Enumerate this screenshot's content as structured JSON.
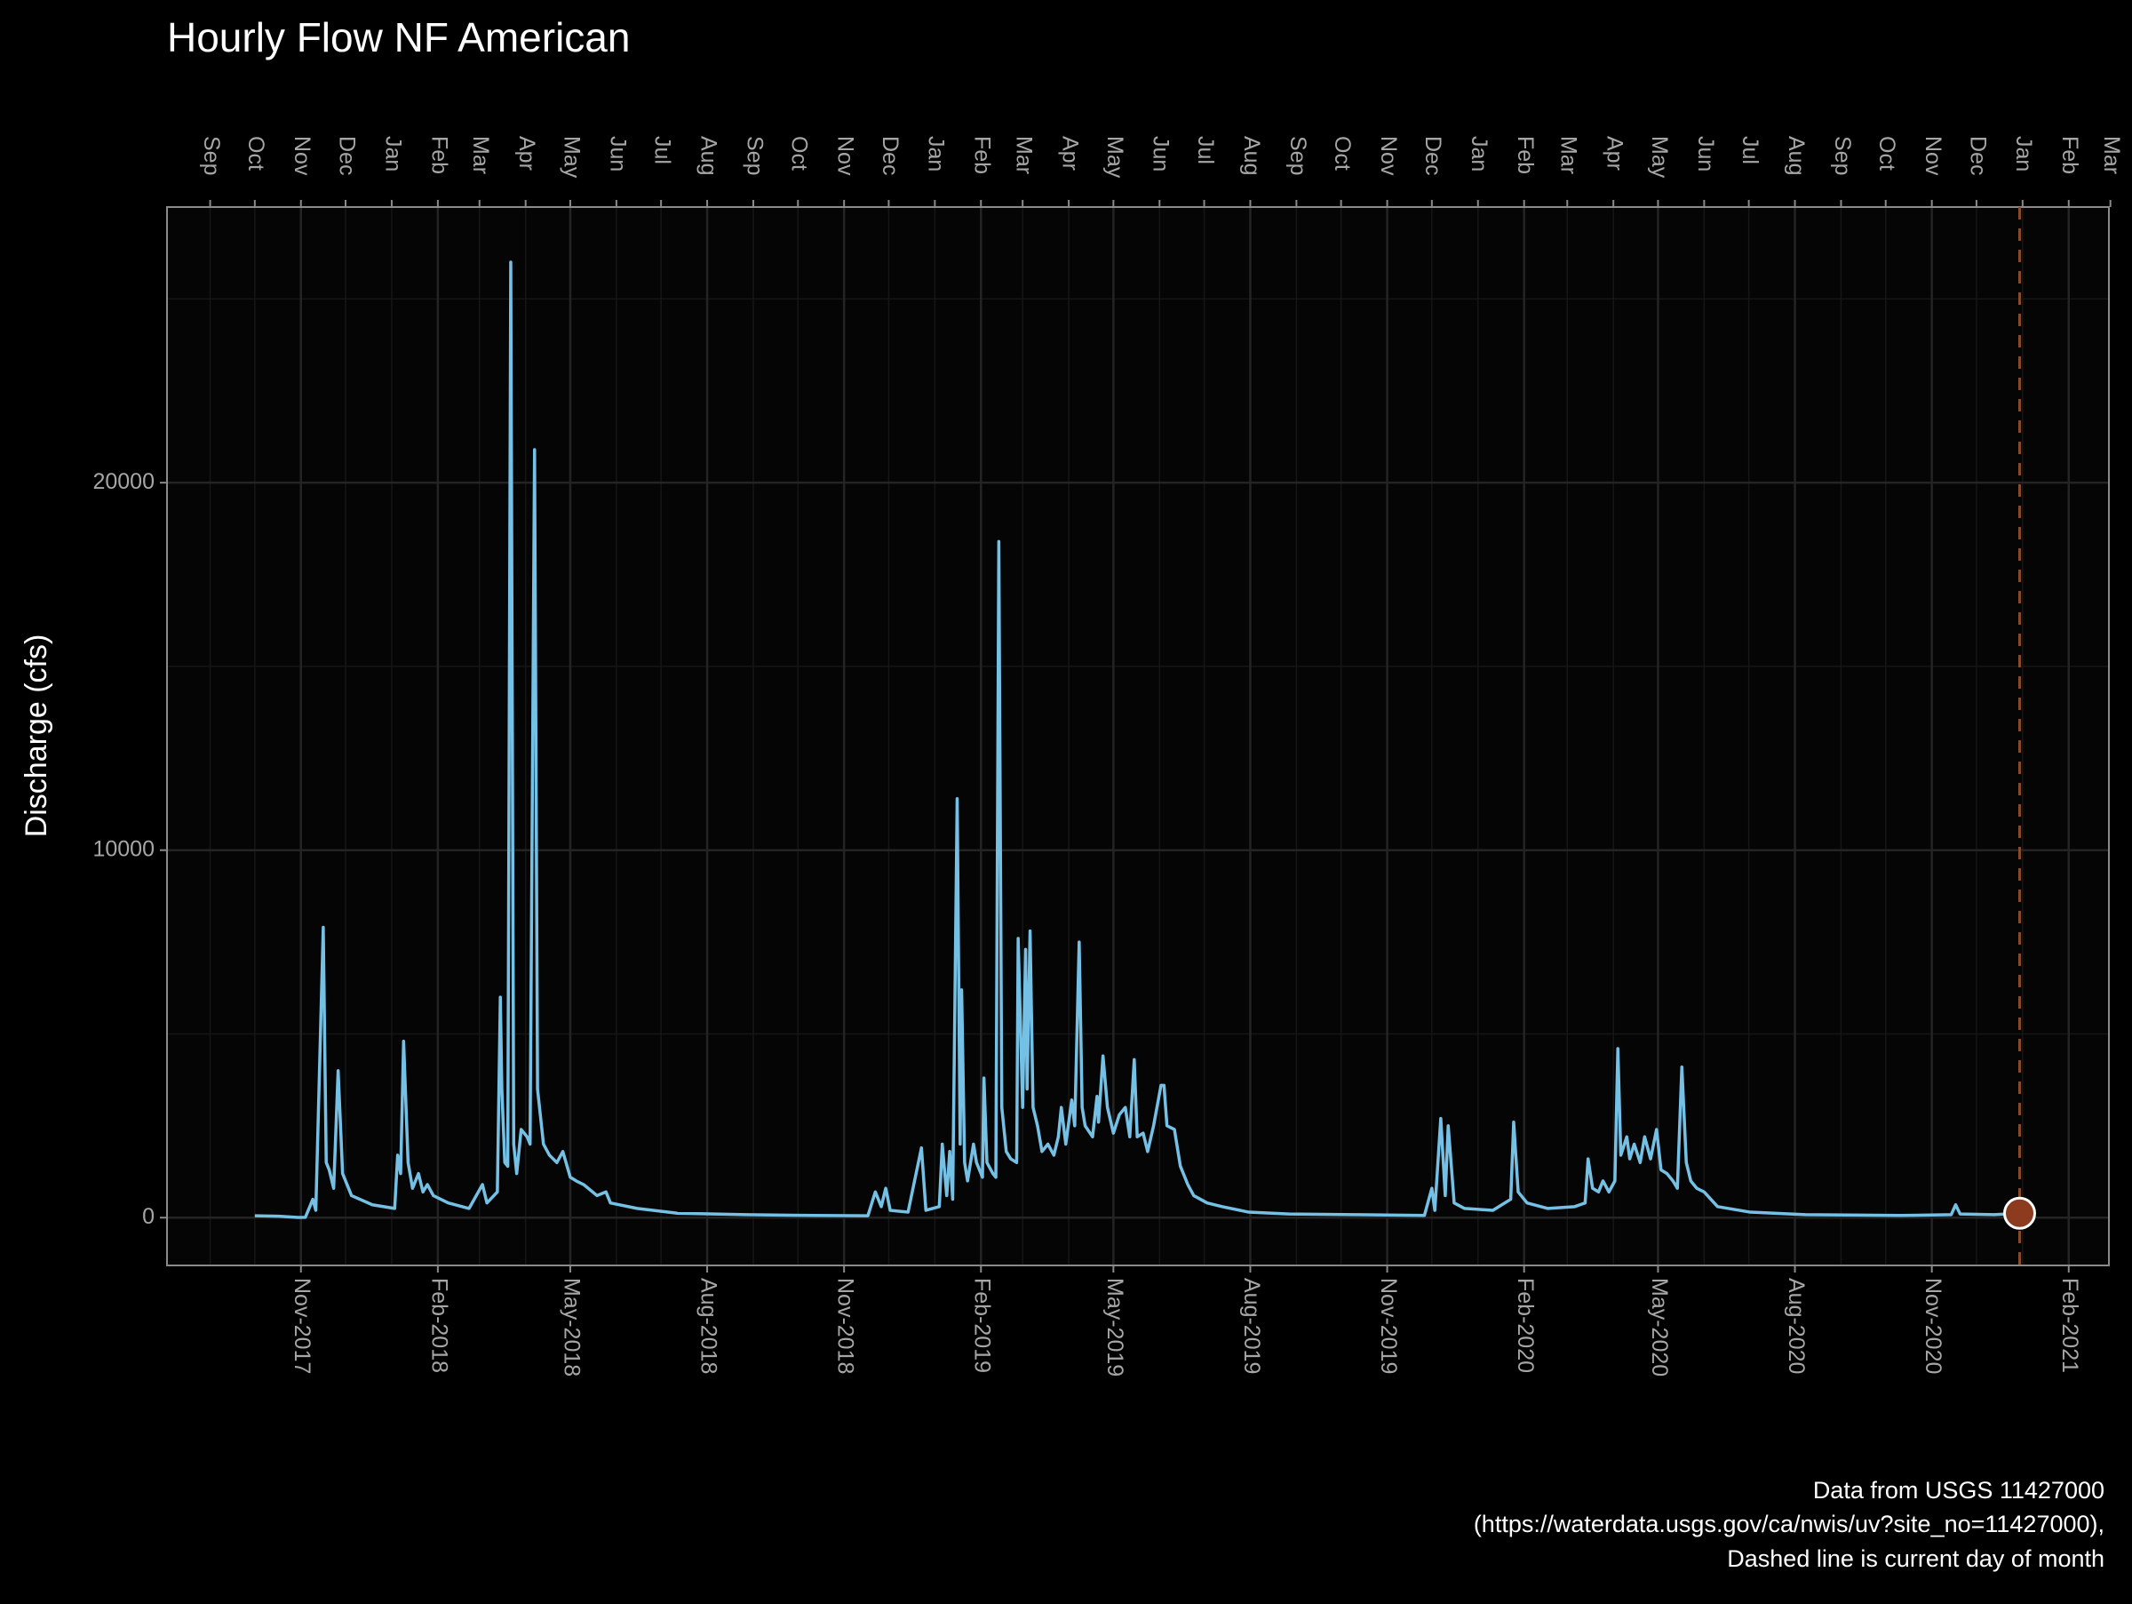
{
  "chart_data": {
    "type": "line",
    "title": "Hourly Flow NF American",
    "y_label": "Discharge (cfs)",
    "caption": [
      "Data from USGS 11427000",
      "(https://waterdata.usgs.gov/ca/nwis/uv?site_no=11427000),",
      "Dashed line is current day of month"
    ],
    "color": "#75c1e6",
    "point_color": "#8c3b1f",
    "vline_color": "#8a4a2c",
    "vline": "2020-12-30",
    "grid": true,
    "xlim": [
      "2017-08-03",
      "2021-02-28"
    ],
    "ylim": [
      -1300,
      27500
    ],
    "yticks": [
      0,
      10000,
      20000
    ],
    "minor_yticks": [
      5000,
      15000,
      25000
    ],
    "xticks": [
      {
        "value": "2017-11-01",
        "label": "Nov-2017"
      },
      {
        "value": "2018-02-01",
        "label": "Feb-2018"
      },
      {
        "value": "2018-05-01",
        "label": "May-2018"
      },
      {
        "value": "2018-08-01",
        "label": "Aug-2018"
      },
      {
        "value": "2018-11-01",
        "label": "Nov-2018"
      },
      {
        "value": "2019-02-01",
        "label": "Feb-2019"
      },
      {
        "value": "2019-05-01",
        "label": "May-2019"
      },
      {
        "value": "2019-08-01",
        "label": "Aug-2019"
      },
      {
        "value": "2019-11-01",
        "label": "Nov-2019"
      },
      {
        "value": "2020-02-01",
        "label": "Feb-2020"
      },
      {
        "value": "2020-05-01",
        "label": "May-2020"
      },
      {
        "value": "2020-08-01",
        "label": "Aug-2020"
      },
      {
        "value": "2020-11-01",
        "label": "Nov-2020"
      },
      {
        "value": "2021-02-01",
        "label": "Feb-2021"
      }
    ],
    "x2ticks": [
      {
        "value": "2017-09-01",
        "label": "Sep"
      },
      {
        "value": "2017-10-01",
        "label": "Oct"
      },
      {
        "value": "2017-11-01",
        "label": "Nov"
      },
      {
        "value": "2017-12-01",
        "label": "Dec"
      },
      {
        "value": "2018-01-01",
        "label": "Jan"
      },
      {
        "value": "2018-02-01",
        "label": "Feb"
      },
      {
        "value": "2018-03-01",
        "label": "Mar"
      },
      {
        "value": "2018-04-01",
        "label": "Apr"
      },
      {
        "value": "2018-05-01",
        "label": "May"
      },
      {
        "value": "2018-06-01",
        "label": "Jun"
      },
      {
        "value": "2018-07-01",
        "label": "Jul"
      },
      {
        "value": "2018-08-01",
        "label": "Aug"
      },
      {
        "value": "2018-09-01",
        "label": "Sep"
      },
      {
        "value": "2018-10-01",
        "label": "Oct"
      },
      {
        "value": "2018-11-01",
        "label": "Nov"
      },
      {
        "value": "2018-12-01",
        "label": "Dec"
      },
      {
        "value": "2019-01-01",
        "label": "Jan"
      },
      {
        "value": "2019-02-01",
        "label": "Feb"
      },
      {
        "value": "2019-03-01",
        "label": "Mar"
      },
      {
        "value": "2019-04-01",
        "label": "Apr"
      },
      {
        "value": "2019-05-01",
        "label": "May"
      },
      {
        "value": "2019-06-01",
        "label": "Jun"
      },
      {
        "value": "2019-07-01",
        "label": "Jul"
      },
      {
        "value": "2019-08-01",
        "label": "Aug"
      },
      {
        "value": "2019-09-01",
        "label": "Sep"
      },
      {
        "value": "2019-10-01",
        "label": "Oct"
      },
      {
        "value": "2019-11-01",
        "label": "Nov"
      },
      {
        "value": "2019-12-01",
        "label": "Dec"
      },
      {
        "value": "2020-01-01",
        "label": "Jan"
      },
      {
        "value": "2020-02-01",
        "label": "Feb"
      },
      {
        "value": "2020-03-01",
        "label": "Mar"
      },
      {
        "value": "2020-04-01",
        "label": "Apr"
      },
      {
        "value": "2020-05-01",
        "label": "May"
      },
      {
        "value": "2020-06-01",
        "label": "Jun"
      },
      {
        "value": "2020-07-01",
        "label": "Jul"
      },
      {
        "value": "2020-08-01",
        "label": "Aug"
      },
      {
        "value": "2020-09-01",
        "label": "Sep"
      },
      {
        "value": "2020-10-01",
        "label": "Oct"
      },
      {
        "value": "2020-11-01",
        "label": "Nov"
      },
      {
        "value": "2020-12-01",
        "label": "Dec"
      },
      {
        "value": "2021-01-01",
        "label": "Jan"
      },
      {
        "value": "2021-02-01",
        "label": "Feb"
      },
      {
        "value": "2021-03-01",
        "label": "Mar"
      }
    ],
    "x": [
      "2017-10-01",
      "2017-10-17",
      "2017-10-30",
      "2017-11-04",
      "2017-11-09",
      "2017-11-11",
      "2017-11-16",
      "2017-11-18",
      "2017-11-20",
      "2017-11-23",
      "2017-11-26",
      "2017-11-29",
      "2017-12-05",
      "2017-12-19",
      "2018-01-03",
      "2018-01-05",
      "2018-01-07",
      "2018-01-09",
      "2018-01-12",
      "2018-01-15",
      "2018-01-19",
      "2018-01-22",
      "2018-01-25",
      "2018-01-29",
      "2018-02-08",
      "2018-02-22",
      "2018-03-03",
      "2018-03-06",
      "2018-03-13",
      "2018-03-15",
      "2018-03-16",
      "2018-03-18",
      "2018-03-20",
      "2018-03-22",
      "2018-03-24",
      "2018-03-26",
      "2018-03-29",
      "2018-04-02",
      "2018-04-04",
      "2018-04-07",
      "2018-04-09",
      "2018-04-13",
      "2018-04-17",
      "2018-04-22",
      "2018-04-26",
      "2018-05-01",
      "2018-05-05",
      "2018-05-10",
      "2018-05-19",
      "2018-05-25",
      "2018-05-28",
      "2018-06-15",
      "2018-07-12",
      "2018-08-27",
      "2018-10-12",
      "2018-11-17",
      "2018-11-22",
      "2018-11-26",
      "2018-11-29",
      "2018-12-02",
      "2018-12-14",
      "2018-12-23",
      "2018-12-26",
      "2019-01-04",
      "2019-01-06",
      "2019-01-09",
      "2019-01-11",
      "2019-01-13",
      "2019-01-16",
      "2019-01-18",
      "2019-01-19",
      "2019-01-21",
      "2019-01-23",
      "2019-01-27",
      "2019-01-29",
      "2019-02-02",
      "2019-02-03",
      "2019-02-05",
      "2019-02-09",
      "2019-02-11",
      "2019-02-13",
      "2019-02-15",
      "2019-02-18",
      "2019-02-21",
      "2019-02-25",
      "2019-02-26",
      "2019-03-01",
      "2019-03-03",
      "2019-03-04",
      "2019-03-06",
      "2019-03-08",
      "2019-03-11",
      "2019-03-14",
      "2019-03-18",
      "2019-03-22",
      "2019-03-25",
      "2019-03-27",
      "2019-03-30",
      "2019-04-03",
      "2019-04-05",
      "2019-04-08",
      "2019-04-10",
      "2019-04-12",
      "2019-04-17",
      "2019-04-20",
      "2019-04-21",
      "2019-04-24",
      "2019-04-27",
      "2019-05-01",
      "2019-05-05",
      "2019-05-09",
      "2019-05-12",
      "2019-05-15",
      "2019-05-17",
      "2019-05-21",
      "2019-05-24",
      "2019-05-28",
      "2019-06-02",
      "2019-06-04",
      "2019-06-06",
      "2019-06-11",
      "2019-06-15",
      "2019-06-20",
      "2019-06-24",
      "2019-07-03",
      "2019-07-13",
      "2019-07-31",
      "2019-08-27",
      "2019-10-12",
      "2019-11-26",
      "2019-12-01",
      "2019-12-03",
      "2019-12-07",
      "2019-12-10",
      "2019-12-12",
      "2019-12-16",
      "2019-12-23",
      "2020-01-11",
      "2020-01-23",
      "2020-01-25",
      "2020-01-28",
      "2020-02-03",
      "2020-02-17",
      "2020-03-06",
      "2020-03-13",
      "2020-03-15",
      "2020-03-18",
      "2020-03-22",
      "2020-03-25",
      "2020-03-29",
      "2020-04-02",
      "2020-04-04",
      "2020-04-06",
      "2020-04-10",
      "2020-04-12",
      "2020-04-15",
      "2020-04-19",
      "2020-04-22",
      "2020-04-26",
      "2020-04-30",
      "2020-05-03",
      "2020-05-07",
      "2020-05-11",
      "2020-05-14",
      "2020-05-17",
      "2020-05-20",
      "2020-05-23",
      "2020-05-27",
      "2020-06-01",
      "2020-06-10",
      "2020-07-02",
      "2020-08-08",
      "2020-10-11",
      "2020-11-14",
      "2020-11-17",
      "2020-11-20",
      "2020-12-13",
      "2020-12-30"
    ],
    "values": [
      50,
      40,
      5,
      10,
      500,
      200,
      7900,
      1500,
      1300,
      800,
      4000,
      1200,
      600,
      350,
      250,
      1700,
      1200,
      4800,
      1500,
      800,
      1200,
      700,
      900,
      600,
      400,
      250,
      900,
      400,
      700,
      6000,
      3500,
      1500,
      1400,
      26000,
      2000,
      1200,
      2400,
      2200,
      2000,
      20900,
      3500,
      2000,
      1700,
      1500,
      1800,
      1100,
      1000,
      900,
      600,
      700,
      400,
      250,
      120,
      80,
      60,
      50,
      700,
      300,
      800,
      200,
      150,
      1900,
      200,
      300,
      2000,
      600,
      1800,
      500,
      11400,
      2000,
      6200,
      1500,
      1000,
      2000,
      1500,
      1100,
      3800,
      1500,
      1200,
      1100,
      18400,
      3000,
      1800,
      1600,
      1500,
      7600,
      3000,
      7300,
      3500,
      7800,
      3000,
      2500,
      1800,
      2000,
      1700,
      2200,
      3000,
      2000,
      3200,
      2500,
      7500,
      3000,
      2500,
      2200,
      3300,
      2600,
      4400,
      3000,
      2300,
      2800,
      3000,
      2200,
      4300,
      2200,
      2300,
      1800,
      2500,
      3600,
      3600,
      2500,
      2400,
      1400,
      900,
      600,
      400,
      300,
      150,
      100,
      80,
      60,
      800,
      200,
      2700,
      600,
      2500,
      400,
      250,
      200,
      500,
      2600,
      700,
      400,
      250,
      300,
      400,
      1600,
      800,
      700,
      1000,
      700,
      1000,
      4600,
      1700,
      2200,
      1600,
      2000,
      1500,
      2200,
      1600,
      2400,
      1300,
      1200,
      1000,
      800,
      4100,
      1500,
      1000,
      800,
      700,
      300,
      150,
      80,
      60,
      80,
      350,
      100,
      80,
      120
    ]
  }
}
